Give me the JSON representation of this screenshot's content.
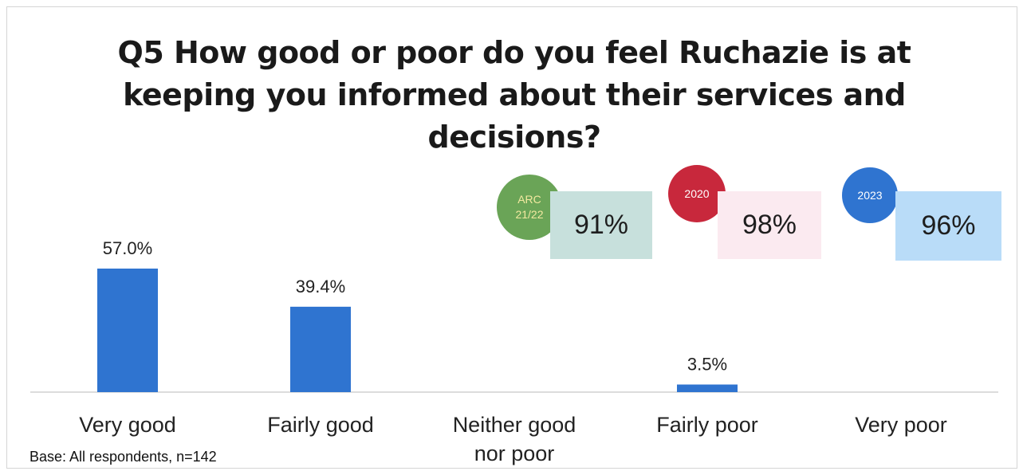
{
  "title": "Q5 How good or poor do you feel Ruchazie is at keeping you informed about their services and decisions?",
  "base_note": "Base: All respondents, n=142",
  "colors": {
    "bar": "#2f74d0",
    "badge_arc": "#6aa457",
    "badge_2020": "#c8283c",
    "badge_2023": "#2f74d0",
    "box_arc": "#c7e0dc",
    "box_2020": "#fbeaf0",
    "box_2023": "#b9dcf8"
  },
  "comparisons": [
    {
      "badge": "ARC 21/22",
      "value": "91%"
    },
    {
      "badge": "2020",
      "value": "98%"
    },
    {
      "badge": "2023",
      "value": "96%"
    }
  ],
  "chart_data": {
    "type": "bar",
    "categories": [
      "Very good",
      "Fairly good",
      "Neither good nor poor",
      "Fairly poor",
      "Very poor"
    ],
    "values": [
      57.0,
      39.4,
      null,
      3.5,
      null
    ],
    "value_labels": [
      "57.0%",
      "39.4%",
      "",
      "3.5%",
      ""
    ],
    "title": "Q5 How good or poor do you feel Ruchazie is at keeping you informed about their services and decisions?",
    "xlabel": "",
    "ylabel": "",
    "ylim": [
      0,
      60
    ],
    "grid": false
  }
}
